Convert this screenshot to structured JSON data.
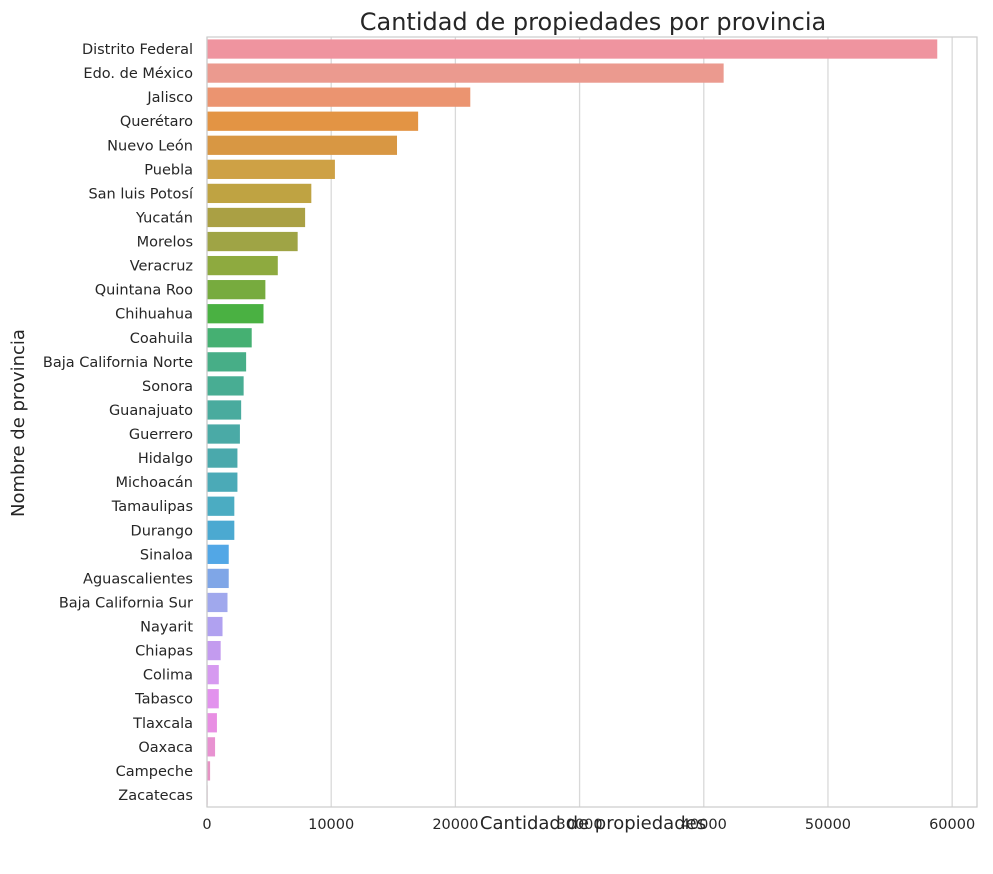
{
  "chart_data": {
    "type": "bar",
    "orientation": "horizontal",
    "title": "Cantidad de propiedades por provincia",
    "xlabel": "Cantidad de propiedades",
    "ylabel": "Nombre de provincia",
    "xlim": [
      0,
      62000
    ],
    "xticks": [
      "0",
      "10000",
      "20000",
      "30000",
      "40000",
      "50000",
      "60000"
    ],
    "grid": "vertical",
    "categories": [
      "Distrito Federal",
      "Edo. de México",
      "Jalisco",
      "Querétaro",
      "Nuevo León",
      "Puebla",
      "San luis Potosí",
      "Yucatán",
      "Morelos",
      "Veracruz",
      "Quintana Roo",
      "Chihuahua",
      "Coahuila",
      "Baja California Norte",
      "Sonora",
      "Guanajuato",
      "Guerrero",
      "Hidalgo",
      "Michoacán",
      "Tamaulipas",
      "Durango",
      "Sinaloa",
      "Aguascalientes",
      "Baja California Sur",
      "Nayarit",
      "Chiapas",
      "Colima",
      "Tabasco",
      "Tlaxcala",
      "Oaxaca",
      "Campeche",
      "Zacatecas"
    ],
    "values": [
      58800,
      41600,
      21200,
      17000,
      15300,
      10300,
      8400,
      7900,
      7300,
      5700,
      4700,
      4550,
      3600,
      3150,
      2950,
      2750,
      2650,
      2450,
      2450,
      2200,
      2200,
      1750,
      1750,
      1650,
      1250,
      1100,
      950,
      950,
      800,
      650,
      250,
      50
    ],
    "colors": [
      "#ef949f",
      "#eb9a8f",
      "#eb9470",
      "#e39444",
      "#d89743",
      "#cea145",
      "#bfa342",
      "#aaa044",
      "#9fa445",
      "#8eaa3f",
      "#77ab3e",
      "#4ab142",
      "#45b072",
      "#47ae87",
      "#48ad93",
      "#49ab9e",
      "#4aaaa6",
      "#4aa9ac",
      "#4baab7",
      "#4bacc2",
      "#4ba9d1",
      "#52a7e6",
      "#7fa6e7",
      "#a0a8ed",
      "#b0a1f0",
      "#c39bef",
      "#d69af0",
      "#e292ed",
      "#e88fe3",
      "#e892d1",
      "#e694c4",
      "#e596ba"
    ]
  }
}
